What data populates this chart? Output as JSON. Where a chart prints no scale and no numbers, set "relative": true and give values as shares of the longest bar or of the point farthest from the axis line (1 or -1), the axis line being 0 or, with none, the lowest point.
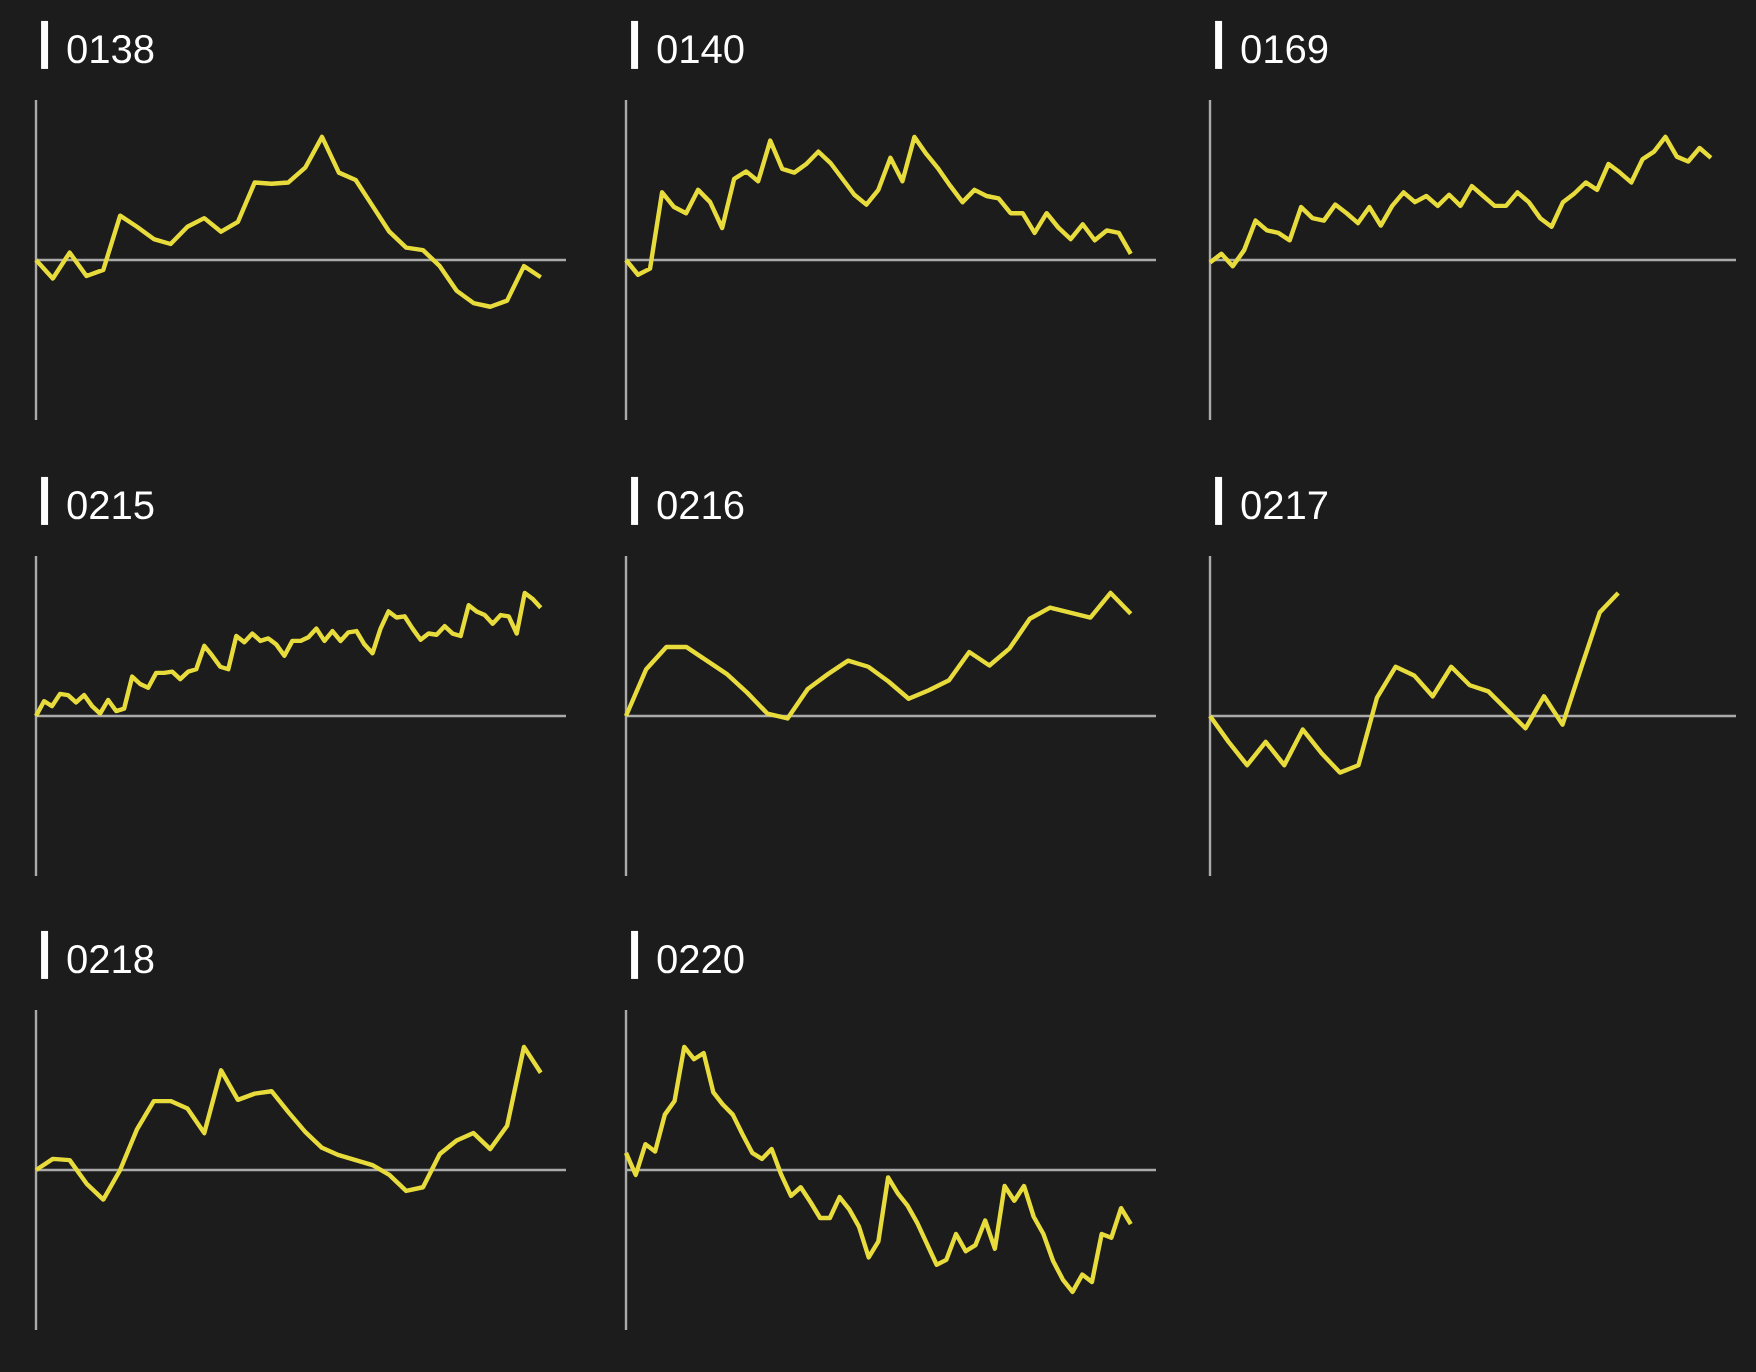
{
  "chart_data": [
    {
      "type": "line",
      "title": "0138",
      "relative": true,
      "color": "#e8dc3c",
      "categories": [
        null,
        null,
        null,
        null,
        null,
        null,
        null,
        null,
        null,
        null,
        null,
        null,
        null,
        null,
        null,
        null,
        null,
        null,
        null,
        null,
        null,
        null,
        null,
        null,
        null,
        null,
        null,
        null,
        null,
        null,
        null
      ],
      "values": [
        0,
        -0.15,
        0.06,
        -0.13,
        -0.08,
        0.36,
        0.27,
        0.17,
        0.13,
        0.27,
        0.34,
        0.23,
        0.31,
        0.63,
        0.62,
        0.63,
        0.75,
        1,
        0.71,
        0.65,
        0.44,
        0.23,
        0.1,
        0.08,
        -0.05,
        -0.25,
        -0.35,
        -0.38,
        -0.33,
        -0.05,
        -0.14
      ]
    },
    {
      "type": "line",
      "title": "0140",
      "relative": true,
      "color": "#e8dc3c",
      "categories": [
        null,
        null,
        null,
        null,
        null,
        null,
        null,
        null,
        null,
        null,
        null,
        null,
        null,
        null,
        null,
        null,
        null,
        null,
        null,
        null,
        null,
        null,
        null,
        null,
        null,
        null,
        null,
        null,
        null,
        null,
        null,
        null,
        null,
        null,
        null,
        null,
        null,
        null,
        null,
        null,
        null,
        null,
        null
      ],
      "values": [
        0,
        -0.12,
        -0.07,
        0.55,
        0.43,
        0.38,
        0.57,
        0.47,
        0.26,
        0.66,
        0.72,
        0.64,
        0.97,
        0.74,
        0.71,
        0.78,
        0.88,
        0.79,
        0.66,
        0.53,
        0.45,
        0.57,
        0.83,
        0.64,
        1,
        0.86,
        0.74,
        0.6,
        0.47,
        0.57,
        0.52,
        0.5,
        0.38,
        0.38,
        0.22,
        0.38,
        0.26,
        0.17,
        0.29,
        0.16,
        0.24,
        0.22,
        0.05
      ]
    },
    {
      "type": "line",
      "title": "0169",
      "relative": true,
      "color": "#e8dc3c",
      "categories": [
        null,
        null,
        null,
        null,
        null,
        null,
        null,
        null,
        null,
        null,
        null,
        null,
        null,
        null,
        null,
        null,
        null,
        null,
        null,
        null,
        null,
        null,
        null,
        null,
        null,
        null,
        null,
        null,
        null,
        null,
        null,
        null,
        null,
        null,
        null,
        null,
        null,
        null,
        null,
        null,
        null,
        null,
        null,
        null,
        null
      ],
      "values": [
        -0.02,
        0.05,
        -0.05,
        0.08,
        0.32,
        0.24,
        0.22,
        0.16,
        0.43,
        0.34,
        0.32,
        0.45,
        0.38,
        0.3,
        0.43,
        0.28,
        0.44,
        0.55,
        0.47,
        0.52,
        0.44,
        0.53,
        0.44,
        0.6,
        0.52,
        0.44,
        0.44,
        0.55,
        0.47,
        0.34,
        0.27,
        0.47,
        0.54,
        0.63,
        0.57,
        0.78,
        0.71,
        0.63,
        0.82,
        0.88,
        1,
        0.84,
        0.8,
        0.91,
        0.83
      ]
    },
    {
      "type": "line",
      "title": "0215",
      "relative": true,
      "color": "#e8dc3c",
      "categories": [
        null,
        null,
        null,
        null,
        null,
        null,
        null,
        null,
        null,
        null,
        null,
        null,
        null,
        null,
        null,
        null,
        null,
        null,
        null,
        null,
        null,
        null,
        null,
        null,
        null,
        null,
        null,
        null,
        null,
        null,
        null,
        null,
        null,
        null,
        null,
        null,
        null,
        null,
        null,
        null,
        null,
        null,
        null,
        null,
        null,
        null,
        null,
        null,
        null,
        null,
        null,
        null,
        null,
        null,
        null,
        null,
        null,
        null,
        null,
        null,
        null,
        null,
        null,
        null
      ],
      "values": [
        0,
        0.12,
        0.08,
        0.18,
        0.17,
        0.11,
        0.17,
        0.08,
        0.02,
        0.13,
        0.04,
        0.06,
        0.32,
        0.26,
        0.23,
        0.35,
        0.35,
        0.36,
        0.3,
        0.36,
        0.38,
        0.57,
        0.49,
        0.4,
        0.38,
        0.65,
        0.6,
        0.67,
        0.61,
        0.63,
        0.58,
        0.49,
        0.61,
        0.61,
        0.64,
        0.71,
        0.61,
        0.69,
        0.61,
        0.68,
        0.69,
        0.58,
        0.51,
        0.71,
        0.85,
        0.8,
        0.81,
        0.71,
        0.62,
        0.67,
        0.66,
        0.73,
        0.67,
        0.65,
        0.9,
        0.85,
        0.82,
        0.75,
        0.82,
        0.81,
        0.67,
        1,
        0.95,
        0.88
      ]
    },
    {
      "type": "line",
      "title": "0216",
      "relative": true,
      "color": "#e8dc3c",
      "categories": [
        null,
        null,
        null,
        null,
        null,
        null,
        null,
        null,
        null,
        null,
        null,
        null,
        null,
        null,
        null,
        null,
        null,
        null,
        null,
        null,
        null,
        null,
        null,
        null,
        null,
        null
      ],
      "values": [
        0,
        0.38,
        0.56,
        0.56,
        0.45,
        0.34,
        0.19,
        0.02,
        -0.02,
        0.22,
        0.34,
        0.45,
        0.4,
        0.28,
        0.14,
        0.21,
        0.29,
        0.52,
        0.41,
        0.55,
        0.79,
        0.88,
        0.84,
        0.8,
        1,
        0.83
      ]
    },
    {
      "type": "line",
      "title": "0217",
      "relative": true,
      "color": "#e8dc3c",
      "categories": [
        null,
        null,
        null,
        null,
        null,
        null,
        null,
        null,
        null,
        null,
        null,
        null,
        null,
        null,
        null,
        null,
        null,
        null,
        null,
        null,
        null,
        null,
        null,
        null,
        null,
        null,
        null,
        null
      ],
      "values": [
        0,
        -0.21,
        -0.4,
        -0.21,
        -0.4,
        -0.11,
        -0.3,
        -0.46,
        -0.4,
        0.15,
        0.4,
        0.33,
        0.16,
        0.4,
        0.25,
        0.2,
        0.05,
        -0.1,
        0.16,
        -0.07,
        0.39,
        0.84,
        1,
        null,
        null,
        null,
        null,
        null
      ]
    },
    {
      "type": "line",
      "title": "0218",
      "relative": true,
      "color": "#e8dc3c",
      "categories": [
        null,
        null,
        null,
        null,
        null,
        null,
        null,
        null,
        null,
        null,
        null,
        null,
        null,
        null,
        null,
        null,
        null,
        null,
        null,
        null,
        null,
        null,
        null,
        null,
        null,
        null,
        null,
        null,
        null,
        null,
        null
      ],
      "values": [
        0,
        0.09,
        0.08,
        -0.11,
        -0.24,
        0,
        0.33,
        0.56,
        0.56,
        0.5,
        0.3,
        0.81,
        0.57,
        0.62,
        0.64,
        0.47,
        0.31,
        0.18,
        0.12,
        0.08,
        0.04,
        -0.04,
        -0.17,
        -0.14,
        0.13,
        0.24,
        0.3,
        0.17,
        0.36,
        1,
        0.79
      ]
    },
    {
      "type": "line",
      "title": "0220",
      "relative": true,
      "color": "#e8dc3c",
      "categories": [
        null,
        null,
        null,
        null,
        null,
        null,
        null,
        null,
        null,
        null,
        null,
        null,
        null,
        null,
        null,
        null,
        null,
        null,
        null,
        null,
        null,
        null,
        null,
        null,
        null,
        null,
        null,
        null,
        null,
        null,
        null,
        null,
        null,
        null,
        null,
        null,
        null,
        null,
        null,
        null,
        null,
        null,
        null,
        null,
        null,
        null,
        null,
        null,
        null,
        null,
        null,
        null,
        null
      ],
      "values": [
        0.14,
        -0.04,
        0.21,
        0.15,
        0.45,
        0.56,
        1,
        0.9,
        0.95,
        0.63,
        0.53,
        0.45,
        0.29,
        0.14,
        0.09,
        0.17,
        -0.04,
        -0.21,
        -0.14,
        -0.26,
        -0.39,
        -0.39,
        -0.22,
        -0.32,
        -0.46,
        -0.71,
        -0.58,
        -0.06,
        -0.19,
        -0.29,
        -0.43,
        -0.6,
        -0.77,
        -0.73,
        -0.52,
        -0.66,
        -0.61,
        -0.41,
        -0.64,
        -0.13,
        -0.25,
        -0.13,
        -0.38,
        -0.52,
        -0.74,
        -0.89,
        -0.99,
        -0.85,
        -0.91,
        -0.52,
        -0.55,
        -0.31,
        -0.44
      ]
    }
  ]
}
